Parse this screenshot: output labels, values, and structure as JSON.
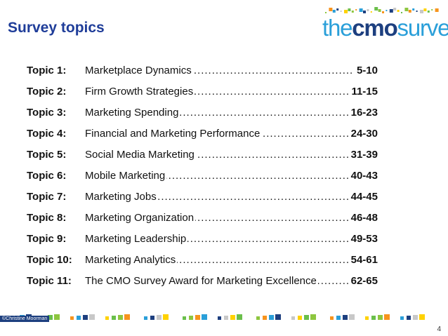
{
  "page": {
    "title": "Survey topics",
    "page_number": "4",
    "credit": "©Christine Moorman"
  },
  "logo": {
    "the": "the",
    "cmo": "cmo",
    "survey": "survey"
  },
  "toc": [
    {
      "num": "Topic 1:",
      "name": "Marketplace Dynamics",
      "pages": "5-10"
    },
    {
      "num": "Topic 2:",
      "name": "Firm Growth Strategies",
      "pages": "11-15"
    },
    {
      "num": "Topic 3:",
      "name": "Marketing Spending",
      "pages": "16-23"
    },
    {
      "num": "Topic 4:",
      "name": "Financial and Marketing Performance",
      "pages": "24-30"
    },
    {
      "num": "Topic 5:",
      "name": "Social Media Marketing",
      "pages": "31-39"
    },
    {
      "num": "Topic 6:",
      "name": "Mobile Marketing",
      "pages": "40-43"
    },
    {
      "num": "Topic 7:",
      "name": "Marketing Jobs",
      "pages": "44-45"
    },
    {
      "num": "Topic 8:",
      "name": "Marketing Organization",
      "pages": "46-48"
    },
    {
      "num": "Topic 9:",
      "name": "Marketing Leadership",
      "pages": "49-53"
    },
    {
      "num": "Topic 10:",
      "name": "Marketing Analytics",
      "pages": "54-61"
    },
    {
      "num": "Topic 11:",
      "name": "The CMO Survey Award for Marketing Excellence",
      "pages": "62-65"
    }
  ],
  "colors": {
    "title": "#1f3d99",
    "logo_blue": "#2a9fd9",
    "logo_navy": "#1d3f7f",
    "accent_palette": [
      "#8dc63f",
      "#f7941d",
      "#2a9fd9",
      "#1d3f7f",
      "#c8c8c8",
      "#ffd200",
      "#6abf4b"
    ]
  }
}
